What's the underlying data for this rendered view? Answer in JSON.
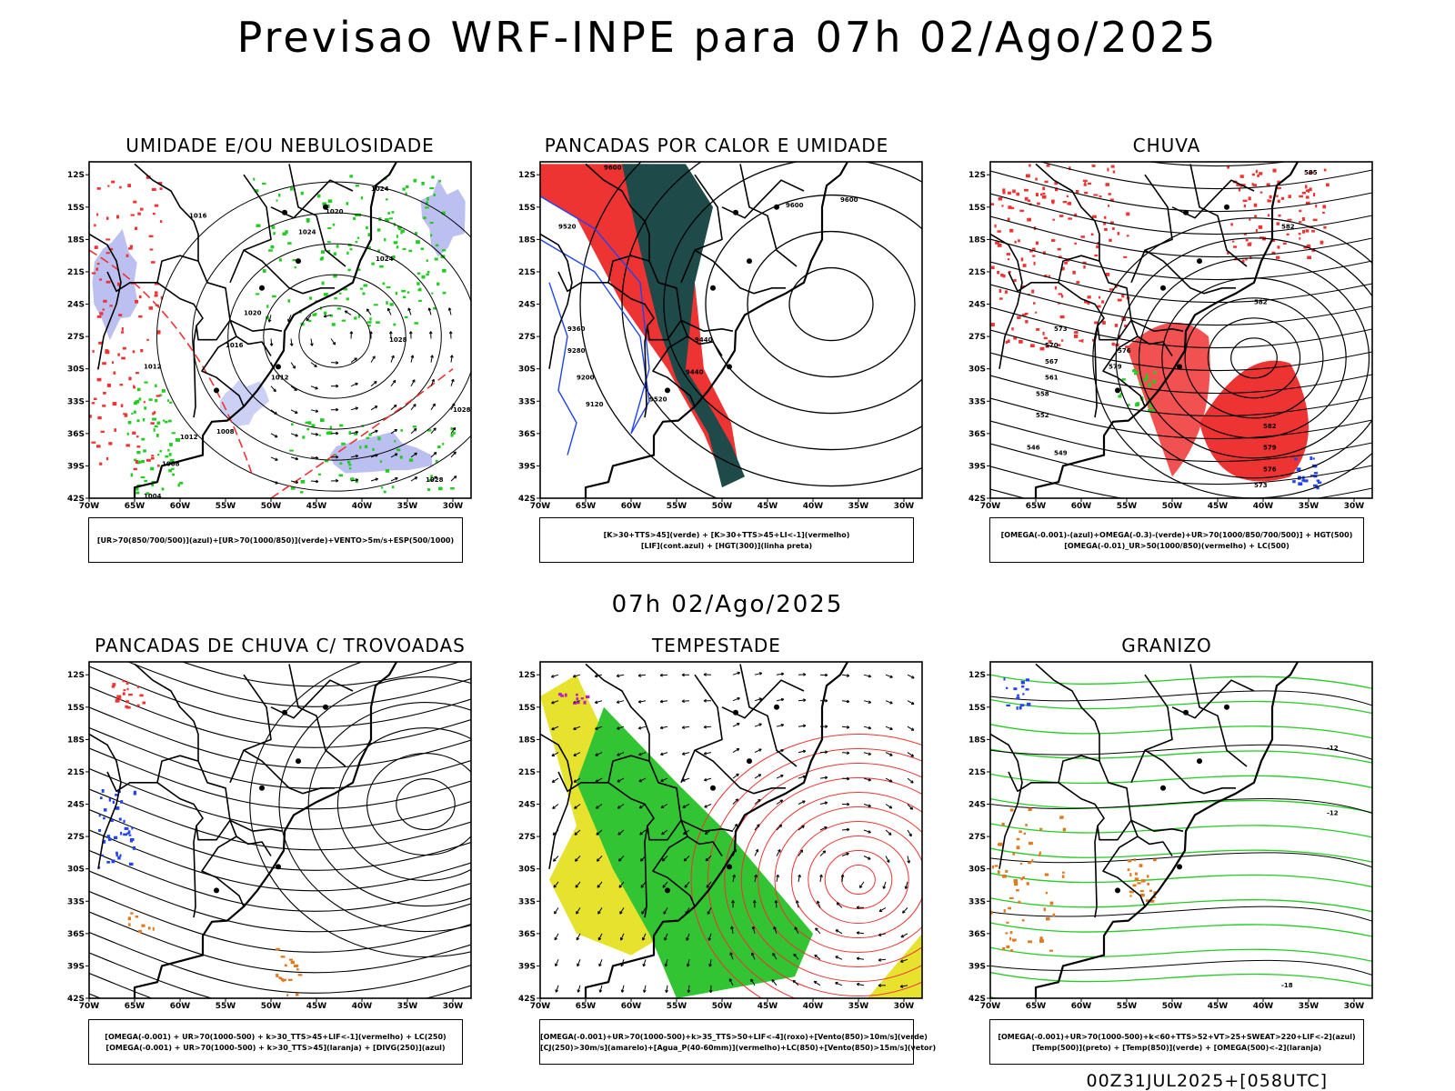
{
  "title": "Previsao WRF-INPE  para 07h 02/Ago/2025",
  "mid_date": "07h 02/Ago/2025",
  "footer": "00Z31JUL2025+[058UTC]",
  "axes": {
    "lat_labels": [
      "12S",
      "15S",
      "18S",
      "21S",
      "24S",
      "27S",
      "30S",
      "33S",
      "36S",
      "39S",
      "42S"
    ],
    "lon_labels": [
      "70W",
      "65W",
      "60W",
      "55W",
      "50W",
      "45W",
      "40W",
      "35W",
      "30W"
    ]
  },
  "panels": [
    {
      "title": "UMIDADE E/OU NEBULOSIDADE",
      "legend": [
        "[UR>70(850/700/500)](azul)+[UR>70(1000/850)](verde)+VENTO>5m/s+ESP(500/1000)"
      ],
      "contour_labels": [
        "1024",
        "1016",
        "1020",
        "1024",
        "1012",
        "1028",
        "1020",
        "1016",
        "1012",
        "1008",
        "1012",
        "1028",
        "1028",
        "1004",
        "1008",
        "1024"
      ]
    },
    {
      "title": "PANCADAS POR CALOR E UMIDADE",
      "legend": [
        "[K>30+TTS>45](verde) + [K>30+TTS>45+LI<-1](vermelho)",
        "[LIF](cont.azul) + [HGT(300)](linha preta)"
      ],
      "contour_labels": [
        "9600",
        "9600",
        "9600",
        "9520",
        "9440",
        "9520",
        "9360",
        "9280",
        "9200",
        "9120",
        "9440"
      ]
    },
    {
      "title": "CHUVA",
      "legend": [
        "[OMEGA(-0.001)-(azul)+OMEGA(-0.3)-(verde)+UR>70(1000/850/700/500)] + HGT(500)",
        "[OMEGA(-0.01)_UR>50(1000/850)(vermelho) + LC(500)"
      ],
      "contour_labels": [
        "585",
        "582",
        "582",
        "573",
        "570",
        "567",
        "576",
        "579",
        "561",
        "558",
        "552",
        "546",
        "549",
        "582",
        "579",
        "576",
        "573"
      ]
    },
    {
      "title": "PANCADAS DE CHUVA C/ TROVOADAS",
      "legend": [
        "[OMEGA(-0.001) + UR>70(1000-500) + k>30_TTS>45+LIF<-1](vermelho) + LC(250)",
        "[OMEGA(-0.001) + UR>70(1000-500) + k>30_TTS>45](laranja) + [DIVG(250)](azul)"
      ],
      "contour_labels": []
    },
    {
      "title": "TEMPESTADE",
      "legend": [
        "[OMEGA(-0.001)+UR>70(1000-500)+k>35_TTS>50+LIF<-4](roxo)+[Vento(850)>10m/s](verde)",
        "[CJ(250)>30m/s](amarelo)+[Agua_P(40-60mm)](vermelho)+LC(850)+[Vento(850)>15m/s](vetor)"
      ],
      "contour_labels": []
    },
    {
      "title": "GRANIZO",
      "legend": [
        "[OMEGA(-0.001)+UR>70(1000-500)+k<60+TTS>52+VT>25+SWEAT>220+LIF<-2](azul)",
        "[Temp(500)](preto) + [Temp(850)](verde) + [OMEGA(500)<-2](laranja)"
      ],
      "contour_labels": [
        "-12",
        "-12",
        "-18"
      ]
    }
  ],
  "colors": {
    "blue_shade": "#aab0ee",
    "green": "#22cc22",
    "red": "#ee3333",
    "dark_teal": "#1f4a4a",
    "yellow": "#e6e22e",
    "orange": "#e07a20",
    "blue": "#2244ee",
    "purple": "#bb22bb"
  }
}
